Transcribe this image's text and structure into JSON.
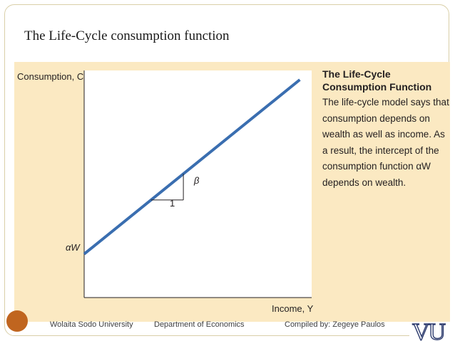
{
  "slide": {
    "title": "The Life-Cycle consumption function"
  },
  "figure": {
    "sidebar": {
      "heading_line1": "The Life-Cycle",
      "heading_line2": "Consumption Function",
      "body_lines": [
        "The life-cycle model says that",
        "consumption depends on",
        "wealth as well as income. As",
        "a result, the intercept of the",
        "consumption function αW",
        "depends on wealth."
      ]
    }
  },
  "chart_data": {
    "type": "line",
    "xlabel": "Income, Y",
    "ylabel": "Consumption, C",
    "intercept_label": "αW",
    "slope_label": "β",
    "run_label": "1",
    "series": [
      {
        "x": [
          0,
          1
        ],
        "y": [
          0.2,
          1
        ]
      }
    ],
    "line_color": "#3a6eb0"
  },
  "footer": {
    "university": "Wolaita Sodo University",
    "department": "Department of Economics",
    "compiled_by": "Compiled by:  Zegeye Paulos",
    "logo_text": "VU"
  }
}
